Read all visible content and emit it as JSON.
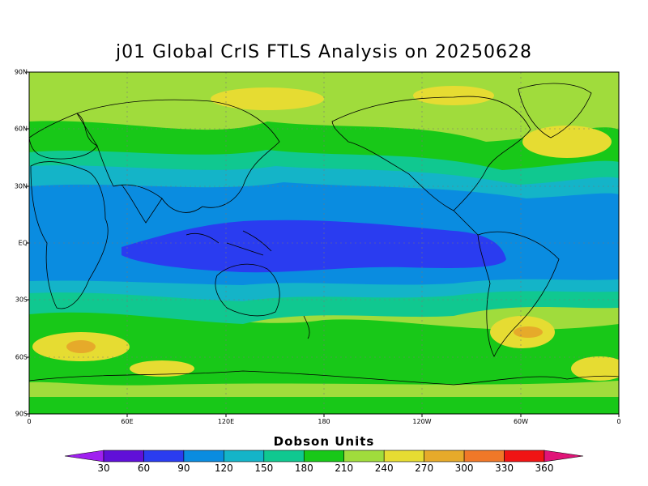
{
  "title": "j01 Global CrIS FTLS Analysis on 20250628",
  "map": {
    "lat_labels": [
      "90N",
      "60N",
      "30N",
      "EQ",
      "30S",
      "60S",
      "90S"
    ],
    "lon_labels": [
      "0",
      "60E",
      "120E",
      "180",
      "120W",
      "60W",
      "0"
    ]
  },
  "colorbar": {
    "title": "Dobson Units",
    "ticks": [
      "30",
      "60",
      "90",
      "120",
      "150",
      "180",
      "210",
      "240",
      "270",
      "300",
      "330",
      "360"
    ],
    "colors": [
      "#a020f0",
      "#6010d8",
      "#2a3cf0",
      "#0a8ce0",
      "#14b4c8",
      "#10c890",
      "#18c818",
      "#a0dc3c",
      "#e6dc32",
      "#e6aa2a",
      "#f07828",
      "#f01414",
      "#e01478"
    ]
  }
}
